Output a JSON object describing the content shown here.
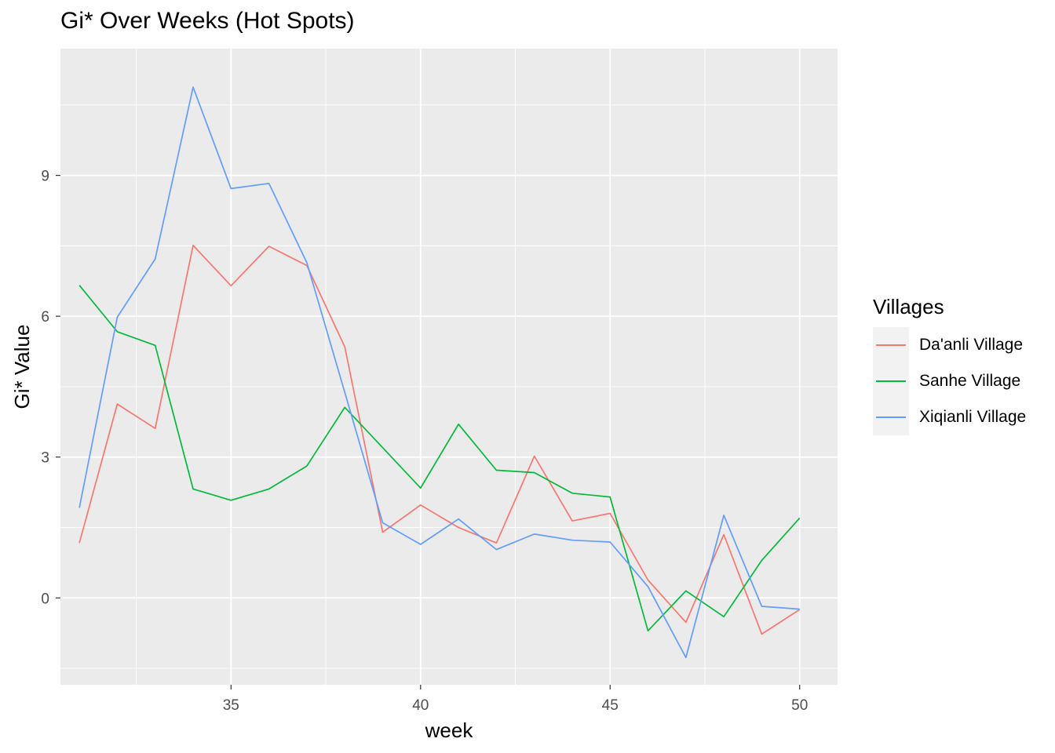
{
  "chart_data": {
    "type": "line",
    "title": "Gi* Over Weeks (Hot Spots)",
    "xlabel": "week",
    "ylabel": "Gi* Value",
    "xlim": [
      30.5,
      51
    ],
    "ylim": [
      -1.85,
      11.7
    ],
    "x_ticks": [
      35,
      40,
      45,
      50
    ],
    "y_ticks": [
      0,
      3,
      6,
      9
    ],
    "x": [
      31,
      32,
      33,
      34,
      35,
      36,
      37,
      38,
      39,
      40,
      41,
      42,
      43,
      44,
      45,
      46,
      47,
      48,
      49,
      50
    ],
    "legend": {
      "title": "Villages",
      "placement": "right"
    },
    "series": [
      {
        "name": "Da'anli Village",
        "color": "#F8766D",
        "values": [
          1.17,
          4.13,
          3.61,
          7.51,
          6.65,
          7.49,
          7.08,
          5.35,
          1.4,
          1.98,
          1.5,
          1.17,
          3.02,
          1.64,
          1.8,
          0.38,
          -0.52,
          1.35,
          -0.77,
          -0.25
        ]
      },
      {
        "name": "Sanhe Village",
        "color": "#00BA38",
        "values": [
          6.66,
          5.67,
          5.38,
          2.32,
          2.08,
          2.32,
          2.81,
          4.06,
          3.2,
          2.34,
          3.7,
          2.72,
          2.67,
          2.23,
          2.15,
          -0.7,
          0.15,
          -0.4,
          0.8,
          1.7
        ]
      },
      {
        "name": "Xiqianli Village",
        "color": "#619CFF",
        "values": [
          1.92,
          5.98,
          7.22,
          10.88,
          8.72,
          8.83,
          7.14,
          4.38,
          1.6,
          1.14,
          1.68,
          1.03,
          1.36,
          1.23,
          1.19,
          0.24,
          -1.27,
          1.76,
          -0.18,
          -0.24
        ]
      }
    ]
  }
}
